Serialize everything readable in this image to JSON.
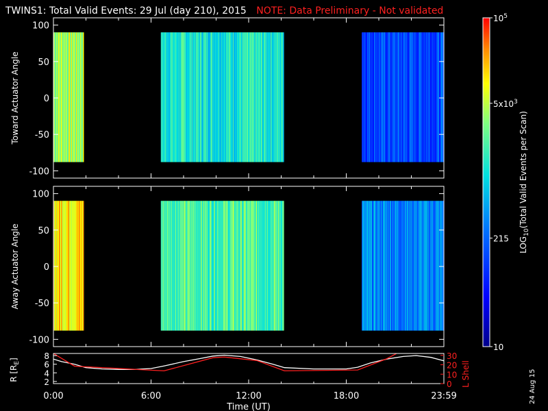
{
  "title": {
    "main": "TWINS1: Total Valid Events: 29 Jul (day 210), 2015",
    "note": "NOTE: Data Preliminary - Not validated"
  },
  "date_stamp": "24 Aug 15",
  "colors": {
    "background": "#000000",
    "foreground": "#ffffff",
    "note": "#ff2020",
    "lshell_line": "#ff2020",
    "radius_line": "#ffffff"
  },
  "chart_data": [
    {
      "type": "heatmap",
      "name": "toward",
      "ylabel": "Toward Actuator Angle",
      "ylim": [
        -110,
        110
      ],
      "yticks": [
        100,
        50,
        0,
        -50,
        -100
      ],
      "angle_range": [
        -88,
        90
      ],
      "xlim": [
        0,
        24
      ],
      "blocks": [
        {
          "start": 0.0,
          "end": 1.85,
          "level": 0.72
        },
        {
          "start": 6.6,
          "end": 14.15,
          "level": 0.55
        },
        {
          "start": 18.95,
          "end": 24.0,
          "level": 0.28
        }
      ]
    },
    {
      "type": "heatmap",
      "name": "away",
      "ylabel": "Away Actuator Angle",
      "ylim": [
        -110,
        110
      ],
      "yticks": [
        100,
        50,
        0,
        -50,
        -100
      ],
      "angle_range": [
        -88,
        90
      ],
      "xlim": [
        0,
        24
      ],
      "blocks": [
        {
          "start": 0.0,
          "end": 1.85,
          "level": 0.83
        },
        {
          "start": 6.6,
          "end": 14.15,
          "level": 0.62
        },
        {
          "start": 18.95,
          "end": 24.0,
          "level": 0.38
        }
      ]
    },
    {
      "type": "line",
      "name": "orbit",
      "xlabel": "Time (UT)",
      "xticks": [
        "0:00",
        "6:00",
        "12:00",
        "18:00",
        "23:59"
      ],
      "xlim": [
        0,
        24
      ],
      "left_axis": {
        "label": "R [R",
        "label_sub": "E",
        "label_end": "]",
        "ylim": [
          1.5,
          8.5
        ],
        "ticks": [
          8,
          6,
          4,
          2
        ]
      },
      "right_axis": {
        "label": "L Shell",
        "ylim": [
          0,
          32
        ],
        "ticks": [
          30,
          20,
          10,
          0
        ]
      },
      "series": [
        {
          "axis": "left",
          "color": "#ffffff",
          "x": [
            0,
            0.5,
            1.3,
            2,
            3,
            4,
            5,
            6,
            6.8,
            8,
            9,
            9.8,
            10.5,
            11.5,
            12.5,
            13.5,
            14.2,
            16,
            18,
            18.7,
            19.5,
            20.5,
            21.5,
            22.3,
            23.2,
            24
          ],
          "y": [
            7.2,
            6.6,
            6.0,
            5.2,
            4.9,
            4.8,
            4.8,
            5.0,
            5.6,
            6.6,
            7.3,
            7.9,
            8.1,
            7.8,
            7.0,
            6.0,
            5.2,
            4.9,
            4.9,
            5.3,
            6.3,
            7.2,
            7.8,
            8.0,
            7.6,
            6.8
          ]
        },
        {
          "axis": "right",
          "color": "#ff2020",
          "x": [
            0,
            1.3,
            6.8,
            9.8,
            10.5,
            12.5,
            14.2,
            18.7,
            20.5,
            21.2
          ],
          "y": [
            32,
            18.5,
            13.5,
            27.5,
            28.2,
            24.5,
            13.5,
            14.5,
            26.5,
            33
          ]
        }
      ]
    },
    {
      "type": "colorbar",
      "label_prefix": "LOG",
      "label_sub": "10",
      "label_suffix": "(Total Valid Events per Scan)",
      "ticks": [
        {
          "label": "10",
          "level": 0.0
        },
        {
          "label": "215",
          "level": 0.33
        },
        {
          "label": "5x10",
          "sup": "3",
          "level": 0.74
        },
        {
          "label": "10",
          "sup": "5",
          "level": 1.0
        }
      ]
    }
  ]
}
